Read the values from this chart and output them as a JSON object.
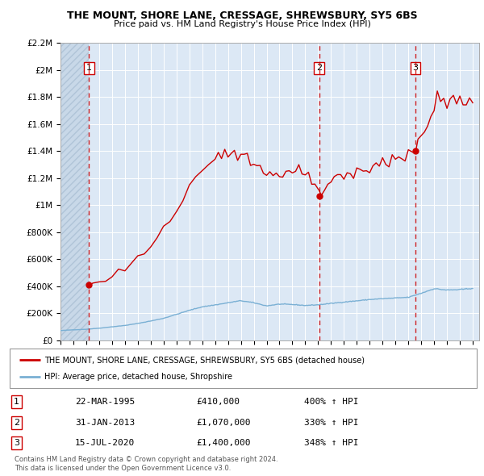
{
  "title1": "THE MOUNT, SHORE LANE, CRESSAGE, SHREWSBURY, SY5 6BS",
  "title2": "Price paid vs. HM Land Registry's House Price Index (HPI)",
  "ylim": [
    0,
    2200000
  ],
  "xlim_start": 1993.0,
  "xlim_end": 2025.5,
  "yticks": [
    0,
    200000,
    400000,
    600000,
    800000,
    1000000,
    1200000,
    1400000,
    1600000,
    1800000,
    2000000,
    2200000
  ],
  "ytick_labels": [
    "£0",
    "£200K",
    "£400K",
    "£600K",
    "£800K",
    "£1M",
    "£1.2M",
    "£1.4M",
    "£1.6M",
    "£1.8M",
    "£2M",
    "£2.2M"
  ],
  "sale_points": [
    {
      "label": "1",
      "year": 1995.22,
      "price": 410000
    },
    {
      "label": "2",
      "year": 2013.08,
      "price": 1070000
    },
    {
      "label": "3",
      "year": 2020.54,
      "price": 1400000
    }
  ],
  "legend_line1": "THE MOUNT, SHORE LANE, CRESSAGE, SHREWSBURY, SY5 6BS (detached house)",
  "legend_line2": "HPI: Average price, detached house, Shropshire",
  "table_rows": [
    {
      "num": "1",
      "date": "22-MAR-1995",
      "price": "£410,000",
      "pct": "400% ↑ HPI"
    },
    {
      "num": "2",
      "date": "31-JAN-2013",
      "price": "£1,070,000",
      "pct": "330% ↑ HPI"
    },
    {
      "num": "3",
      "date": "15-JUL-2020",
      "price": "£1,400,000",
      "pct": "348% ↑ HPI"
    }
  ],
  "footer": "Contains HM Land Registry data © Crown copyright and database right 2024.\nThis data is licensed under the Open Government Licence v3.0.",
  "bg_color": "#dce8f5",
  "hatch_bg_color": "#c8d8e8",
  "line_red": "#cc0000",
  "line_blue": "#7ab0d4",
  "grid_color": "#ffffff"
}
